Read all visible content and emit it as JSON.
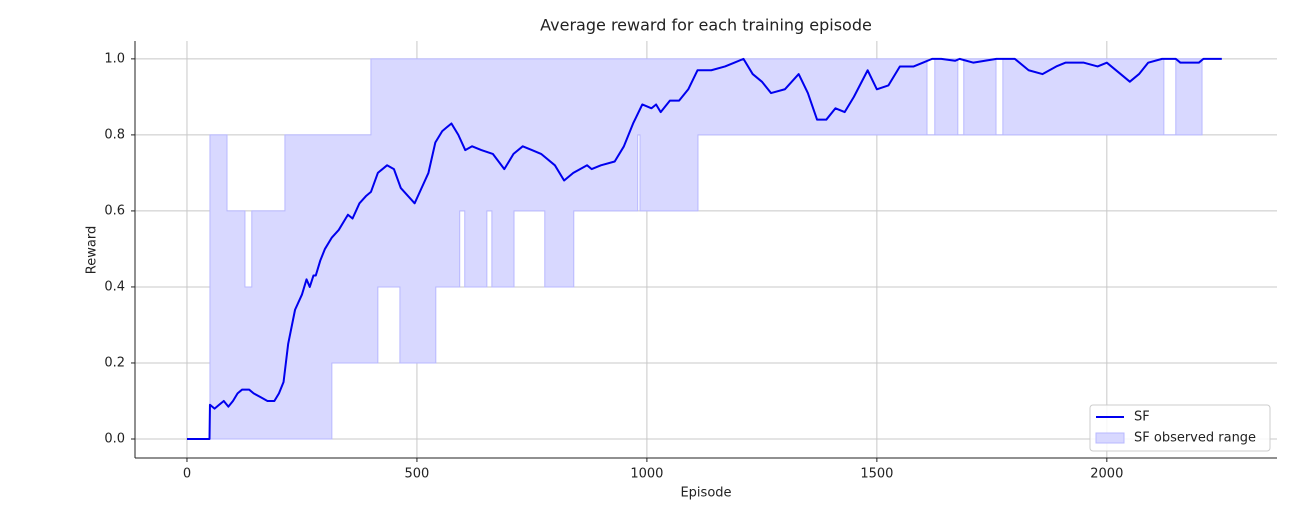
{
  "chart_data": {
    "type": "line",
    "title": "Average reward for each training episode",
    "xlabel": "Episode",
    "ylabel": "Reward",
    "xlim": [
      -113,
      2370
    ],
    "ylim": [
      -0.05,
      1.047
    ],
    "xticks": [
      0,
      500,
      1000,
      1500,
      2000
    ],
    "yticks": [
      {
        "value": 0,
        "label": "0.0"
      },
      {
        "value": 0.2,
        "label": "0.2"
      },
      {
        "value": 0.4,
        "label": "0.4"
      },
      {
        "value": 0.6,
        "label": "0.6"
      },
      {
        "value": 0.8,
        "label": "0.8"
      },
      {
        "value": 1,
        "label": "1.0"
      }
    ],
    "grid": true,
    "legend": "lower right",
    "series": [
      {
        "name": "SF",
        "color": "#0000ee",
        "x": [
          0,
          49,
          50,
          60,
          70,
          80,
          90,
          100,
          110,
          120,
          135,
          145,
          160,
          175,
          190,
          200,
          210,
          220,
          235,
          250,
          260,
          267,
          275,
          280,
          290,
          300,
          315,
          330,
          345,
          350,
          360,
          375,
          390,
          400,
          415,
          435,
          450,
          465,
          480,
          495,
          510,
          525,
          540,
          555,
          565,
          575,
          590,
          605,
          620,
          640,
          665,
          690,
          710,
          730,
          750,
          770,
          800,
          820,
          840,
          870,
          880,
          900,
          930,
          950,
          970,
          990,
          1010,
          1020,
          1030,
          1050,
          1070,
          1090,
          1110,
          1140,
          1170,
          1190,
          1210,
          1230,
          1250,
          1270,
          1300,
          1330,
          1350,
          1370,
          1390,
          1410,
          1430,
          1450,
          1480,
          1500,
          1525,
          1550,
          1580,
          1600,
          1620,
          1640,
          1670,
          1680,
          1710,
          1760,
          1800,
          1830,
          1860,
          1890,
          1910,
          1950,
          1980,
          2000,
          2030,
          2050,
          2070,
          2090,
          2120,
          2150,
          2160,
          2200,
          2210,
          2250
        ],
        "values": [
          0,
          0,
          0.09,
          0.08,
          0.09,
          0.1,
          0.085,
          0.1,
          0.12,
          0.13,
          0.13,
          0.12,
          0.11,
          0.1,
          0.1,
          0.12,
          0.15,
          0.25,
          0.34,
          0.38,
          0.42,
          0.4,
          0.43,
          0.43,
          0.47,
          0.5,
          0.53,
          0.55,
          0.58,
          0.59,
          0.58,
          0.62,
          0.64,
          0.65,
          0.7,
          0.72,
          0.71,
          0.66,
          0.64,
          0.62,
          0.66,
          0.7,
          0.78,
          0.81,
          0.82,
          0.83,
          0.8,
          0.76,
          0.77,
          0.76,
          0.75,
          0.71,
          0.75,
          0.77,
          0.76,
          0.75,
          0.72,
          0.68,
          0.7,
          0.72,
          0.71,
          0.72,
          0.73,
          0.77,
          0.83,
          0.88,
          0.87,
          0.88,
          0.86,
          0.89,
          0.89,
          0.92,
          0.97,
          0.97,
          0.98,
          0.99,
          1.0,
          0.96,
          0.94,
          0.91,
          0.92,
          0.96,
          0.91,
          0.84,
          0.84,
          0.87,
          0.86,
          0.9,
          0.97,
          0.92,
          0.93,
          0.98,
          0.98,
          0.99,
          1.0,
          1.0,
          0.995,
          1.0,
          0.99,
          1.0,
          1.0,
          0.97,
          0.96,
          0.98,
          0.99,
          0.99,
          0.98,
          0.99,
          0.96,
          0.94,
          0.96,
          0.99,
          1.0,
          1.0,
          0.99,
          0.99,
          1.0,
          1.0
        ]
      }
    ],
    "band": {
      "name": "SF observed range",
      "color": "#d8d8ff",
      "edge": "#b8b8ff",
      "x": [
        50,
        87,
        87,
        126,
        126,
        141,
        141,
        213,
        213,
        315,
        315,
        400,
        400,
        415,
        415,
        463,
        463,
        541,
        541,
        593,
        593,
        604,
        604,
        652,
        652,
        663,
        663,
        711,
        711,
        778,
        778,
        841,
        841,
        980,
        980,
        985,
        985,
        1111,
        1111,
        1609,
        1609,
        1626,
        1626,
        1676,
        1676,
        1689,
        1689,
        1759,
        1759,
        1774,
        1774,
        2124,
        2124,
        2150,
        2150,
        2207
      ],
      "lower": [
        0,
        0,
        0,
        0,
        0,
        0,
        0,
        0,
        0,
        0,
        0.2,
        0.2,
        0.2,
        0.2,
        0.4,
        0.4,
        0.2,
        0.2,
        0.4,
        0.4,
        0.6,
        0.6,
        0.4,
        0.4,
        0.6,
        0.6,
        0.4,
        0.4,
        0.6,
        0.6,
        0.4,
        0.4,
        0.6,
        0.6,
        0.8,
        0.8,
        0.6,
        0.6,
        0.8,
        0.8,
        0.8,
        0.8,
        0.8,
        0.8,
        0.8,
        0.8,
        0.8,
        0.8,
        0.8,
        0.8,
        0.8,
        0.8,
        0.8,
        0.8,
        0.8,
        0.8
      ],
      "upper": [
        0.8,
        0.8,
        0.6,
        0.6,
        0.4,
        0.4,
        0.6,
        0.6,
        0.8,
        0.8,
        0.8,
        0.8,
        1,
        1,
        1,
        1,
        1,
        1,
        1,
        1,
        1,
        1,
        1,
        1,
        1,
        1,
        1,
        1,
        1,
        1,
        1,
        1,
        1,
        1,
        1,
        1,
        1,
        1,
        1,
        1,
        0.8,
        0.8,
        1,
        1,
        0.8,
        0.8,
        1,
        1,
        0.8,
        0.8,
        1,
        1,
        0.8,
        0.8,
        1,
        1
      ]
    }
  }
}
